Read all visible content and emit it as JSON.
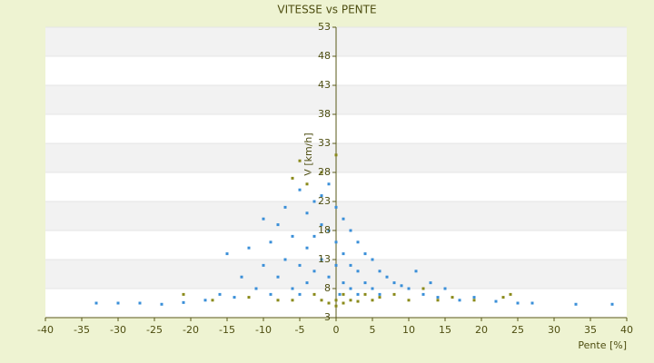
{
  "chart_data": {
    "type": "scatter",
    "title": "VITESSE vs PENTE",
    "x_label": "Pente [%]",
    "y_label": "V [km/h]",
    "xlim": [
      -40,
      40
    ],
    "xticks": [
      -40,
      -35,
      -30,
      -25,
      -20,
      -15,
      -10,
      -5,
      0,
      5,
      10,
      15,
      20,
      25,
      30,
      35,
      40
    ],
    "ylim": [
      3,
      53
    ],
    "yticks": [
      3,
      8,
      13,
      18,
      23,
      28,
      33,
      38,
      43,
      48,
      53
    ],
    "grid": true,
    "series": [
      {
        "color": "#3a8fd8",
        "x": [
          -33,
          -30,
          -27,
          -24,
          -21,
          -18,
          -16,
          -15,
          -14,
          -13,
          -12,
          -11,
          -10,
          -10,
          -9,
          -9,
          -8,
          -8,
          -7,
          -7,
          -6,
          -6,
          -5,
          -5,
          -5,
          -4,
          -4,
          -4,
          -3,
          -3,
          -3,
          -2,
          -2,
          -2,
          -1,
          -1,
          -1,
          0,
          0,
          0,
          0.5,
          1,
          1,
          1,
          2,
          2,
          2,
          3,
          3,
          3,
          4,
          4,
          5,
          5,
          6,
          6,
          7,
          8,
          9,
          10,
          11,
          12,
          13,
          14,
          15,
          17,
          19,
          22,
          25,
          27,
          33,
          38
        ],
        "y": [
          5.5,
          5.5,
          5.5,
          5.3,
          5.6,
          6,
          7,
          14,
          6.5,
          10,
          15,
          8,
          20,
          12,
          16,
          7,
          19,
          10,
          22,
          13,
          17,
          8,
          25,
          12,
          7,
          21,
          15,
          9,
          23,
          17,
          11,
          24,
          19,
          13,
          26,
          18,
          10,
          22,
          16,
          12,
          7,
          20,
          14,
          9,
          18,
          12,
          8,
          16,
          11,
          7,
          14,
          9,
          13,
          8,
          11,
          7,
          10,
          9,
          8.5,
          8,
          11,
          7,
          9,
          6.5,
          8,
          6,
          6.5,
          5.8,
          5.5,
          5.5,
          5.3,
          5.3
        ]
      },
      {
        "color": "#8a8a1a",
        "x": [
          -21,
          -17,
          -12,
          -8,
          -6,
          -5,
          -4,
          -3,
          -2,
          -1,
          0,
          0,
          1,
          1,
          2,
          3,
          4,
          5,
          -6,
          6,
          8,
          10,
          12,
          14,
          16,
          19,
          23,
          24,
          -2,
          0
        ],
        "y": [
          7,
          6,
          6.5,
          6,
          27,
          30,
          26,
          7,
          6,
          5.5,
          6,
          5,
          7,
          5.5,
          6,
          5.8,
          7,
          6,
          6,
          6.5,
          7,
          6,
          8,
          6,
          6.5,
          6,
          6.5,
          7,
          28,
          31
        ]
      }
    ]
  }
}
